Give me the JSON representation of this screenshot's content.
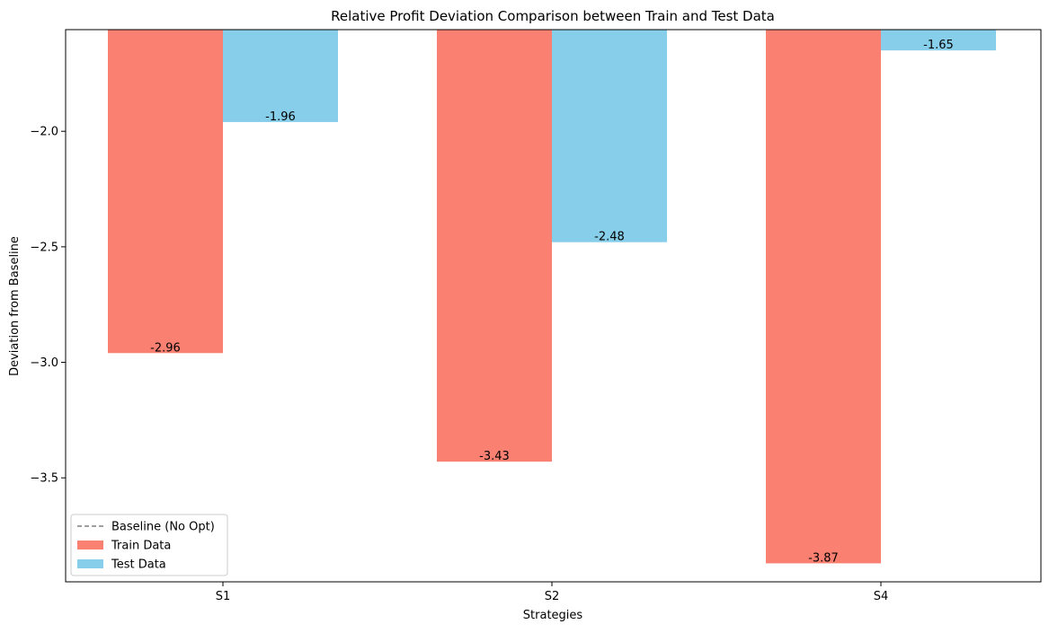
{
  "chart_data": {
    "type": "bar",
    "title": "Relative Profit Deviation Comparison between Train and Test Data",
    "xlabel": "Strategies",
    "ylabel": "Deviation from Baseline",
    "categories": [
      "S1",
      "S2",
      "S4"
    ],
    "series": [
      {
        "name": "Train Data",
        "color": "#fa8072",
        "values": [
          -2.96,
          -3.43,
          -3.87
        ],
        "value_labels": [
          "-2.96",
          "-3.43",
          "-3.87"
        ]
      },
      {
        "name": "Test Data",
        "color": "#87ceeb",
        "values": [
          -1.96,
          -2.48,
          -1.65
        ],
        "value_labels": [
          "-1.96",
          "-2.48",
          "-1.65"
        ]
      }
    ],
    "baseline": {
      "name": "Baseline (No Opt)",
      "value": 0,
      "color": "#808080",
      "style": "dashed"
    },
    "ylim": [
      -3.95,
      -1.56
    ],
    "yticks": [
      -3.5,
      -3.0,
      -2.5,
      -2.0
    ],
    "ytick_labels": [
      "−3.5",
      "−3.0",
      "−2.5",
      "−2.0"
    ],
    "legend_position": "lower-left",
    "grid": false
  }
}
